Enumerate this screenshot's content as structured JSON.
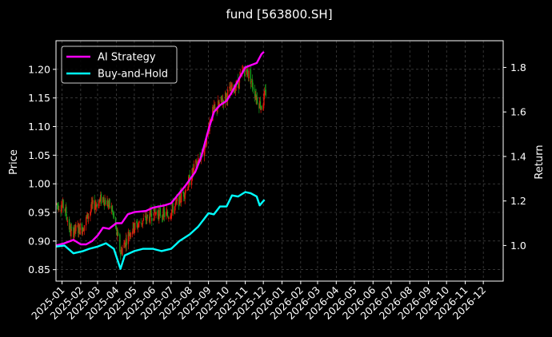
{
  "chart_data": {
    "type": "line",
    "title": "fund [563800.SH]",
    "ylabel": "Price",
    "y2label": "Return",
    "ylim": [
      0.83,
      1.25
    ],
    "y2lim": [
      0.84,
      1.92
    ],
    "yticks": [
      0.85,
      0.9,
      0.95,
      1.0,
      1.05,
      1.1,
      1.15,
      1.2
    ],
    "yticklabels": [
      "0.85",
      "0.90",
      "0.95",
      "1.00",
      "1.05",
      "1.10",
      "1.15",
      "1.20"
    ],
    "y2ticks": [
      1.0,
      1.2,
      1.4,
      1.6,
      1.8
    ],
    "y2ticklabels": [
      "1.0",
      "1.2",
      "1.4",
      "1.6",
      "1.8"
    ],
    "xlim": [
      "2024-12-22",
      "2027-01-03"
    ],
    "xticks": [
      "2025-01-01",
      "2025-02-01",
      "2025-03-01",
      "2025-04-01",
      "2025-05-01",
      "2025-06-01",
      "2025-07-01",
      "2025-08-01",
      "2025-09-01",
      "2025-10-01",
      "2025-11-01",
      "2025-12-01",
      "2026-01-01",
      "2026-02-01",
      "2026-03-01",
      "2026-04-01",
      "2026-05-01",
      "2026-06-01",
      "2026-07-01",
      "2026-08-01",
      "2026-09-01",
      "2026-10-01",
      "2026-11-01",
      "2026-12-01"
    ],
    "xticklabels": [
      "2025-01",
      "2025-02",
      "2025-03",
      "2025-04",
      "2025-05",
      "2025-06",
      "2025-07",
      "2025-08",
      "2025-09",
      "2025-10",
      "2025-11",
      "2025-12",
      "2026-01",
      "2026-02",
      "2026-03",
      "2026-04",
      "2026-05",
      "2026-06",
      "2026-07",
      "2026-08",
      "2026-09",
      "2026-10",
      "2026-11",
      "2026-12"
    ],
    "grid": true,
    "legend_position": "top-left",
    "price_trend": [
      {
        "date": "2024-12-22",
        "price": 0.965
      },
      {
        "date": "2025-01-05",
        "price": 0.96
      },
      {
        "date": "2025-01-15",
        "price": 0.915
      },
      {
        "date": "2025-02-05",
        "price": 0.925
      },
      {
        "date": "2025-02-20",
        "price": 0.96
      },
      {
        "date": "2025-03-10",
        "price": 0.975
      },
      {
        "date": "2025-03-25",
        "price": 0.955
      },
      {
        "date": "2025-04-08",
        "price": 0.88
      },
      {
        "date": "2025-04-25",
        "price": 0.92
      },
      {
        "date": "2025-05-15",
        "price": 0.935
      },
      {
        "date": "2025-06-05",
        "price": 0.95
      },
      {
        "date": "2025-06-25",
        "price": 0.945
      },
      {
        "date": "2025-07-10",
        "price": 0.965
      },
      {
        "date": "2025-07-25",
        "price": 0.99
      },
      {
        "date": "2025-08-10",
        "price": 1.03
      },
      {
        "date": "2025-08-25",
        "price": 1.06
      },
      {
        "date": "2025-09-05",
        "price": 1.12
      },
      {
        "date": "2025-09-20",
        "price": 1.14
      },
      {
        "date": "2025-10-05",
        "price": 1.16
      },
      {
        "date": "2025-10-20",
        "price": 1.175
      },
      {
        "date": "2025-10-30",
        "price": 1.2
      },
      {
        "date": "2025-11-08",
        "price": 1.19
      },
      {
        "date": "2025-11-20",
        "price": 1.15
      },
      {
        "date": "2025-11-28",
        "price": 1.135
      },
      {
        "date": "2025-12-05",
        "price": 1.16
      }
    ],
    "series": [
      {
        "name": "AI Strategy",
        "color": "#ff00ff",
        "points": [
          {
            "date": "2024-12-22",
            "value": 1.0
          },
          {
            "date": "2025-01-05",
            "value": 1.01
          },
          {
            "date": "2025-01-20",
            "value": 1.025
          },
          {
            "date": "2025-02-01",
            "value": 1.005
          },
          {
            "date": "2025-02-10",
            "value": 1.005
          },
          {
            "date": "2025-02-20",
            "value": 1.02
          },
          {
            "date": "2025-03-01",
            "value": 1.045
          },
          {
            "date": "2025-03-10",
            "value": 1.08
          },
          {
            "date": "2025-03-20",
            "value": 1.075
          },
          {
            "date": "2025-04-01",
            "value": 1.1
          },
          {
            "date": "2025-04-10",
            "value": 1.1
          },
          {
            "date": "2025-04-20",
            "value": 1.14
          },
          {
            "date": "2025-05-01",
            "value": 1.15
          },
          {
            "date": "2025-05-20",
            "value": 1.155
          },
          {
            "date": "2025-06-01",
            "value": 1.17
          },
          {
            "date": "2025-06-20",
            "value": 1.18
          },
          {
            "date": "2025-07-01",
            "value": 1.19
          },
          {
            "date": "2025-07-10",
            "value": 1.22
          },
          {
            "date": "2025-07-25",
            "value": 1.27
          },
          {
            "date": "2025-08-10",
            "value": 1.33
          },
          {
            "date": "2025-08-20",
            "value": 1.4
          },
          {
            "date": "2025-09-01",
            "value": 1.52
          },
          {
            "date": "2025-09-10",
            "value": 1.6
          },
          {
            "date": "2025-09-20",
            "value": 1.63
          },
          {
            "date": "2025-10-01",
            "value": 1.65
          },
          {
            "date": "2025-10-10",
            "value": 1.69
          },
          {
            "date": "2025-10-20",
            "value": 1.74
          },
          {
            "date": "2025-11-01",
            "value": 1.8
          },
          {
            "date": "2025-11-10",
            "value": 1.81
          },
          {
            "date": "2025-11-20",
            "value": 1.82
          },
          {
            "date": "2025-11-28",
            "value": 1.86
          },
          {
            "date": "2025-12-02",
            "value": 1.87
          }
        ]
      },
      {
        "name": "Buy-and-Hold",
        "color": "#00ffff",
        "points": [
          {
            "date": "2024-12-22",
            "value": 0.995
          },
          {
            "date": "2025-01-05",
            "value": 1.0
          },
          {
            "date": "2025-01-20",
            "value": 0.965
          },
          {
            "date": "2025-02-05",
            "value": 0.975
          },
          {
            "date": "2025-02-15",
            "value": 0.985
          },
          {
            "date": "2025-03-01",
            "value": 0.995
          },
          {
            "date": "2025-03-15",
            "value": 1.01
          },
          {
            "date": "2025-03-28",
            "value": 0.985
          },
          {
            "date": "2025-04-08",
            "value": 0.895
          },
          {
            "date": "2025-04-15",
            "value": 0.955
          },
          {
            "date": "2025-05-01",
            "value": 0.975
          },
          {
            "date": "2025-05-15",
            "value": 0.985
          },
          {
            "date": "2025-06-01",
            "value": 0.985
          },
          {
            "date": "2025-06-15",
            "value": 0.975
          },
          {
            "date": "2025-07-01",
            "value": 0.985
          },
          {
            "date": "2025-07-15",
            "value": 1.02
          },
          {
            "date": "2025-08-01",
            "value": 1.05
          },
          {
            "date": "2025-08-15",
            "value": 1.085
          },
          {
            "date": "2025-09-01",
            "value": 1.145
          },
          {
            "date": "2025-09-10",
            "value": 1.14
          },
          {
            "date": "2025-09-20",
            "value": 1.175
          },
          {
            "date": "2025-10-01",
            "value": 1.175
          },
          {
            "date": "2025-10-10",
            "value": 1.225
          },
          {
            "date": "2025-10-20",
            "value": 1.22
          },
          {
            "date": "2025-11-01",
            "value": 1.24
          },
          {
            "date": "2025-11-10",
            "value": 1.235
          },
          {
            "date": "2025-11-20",
            "value": 1.22
          },
          {
            "date": "2025-11-25",
            "value": 1.18
          },
          {
            "date": "2025-12-01",
            "value": 1.2
          },
          {
            "date": "2025-12-03",
            "value": 1.205
          }
        ]
      }
    ]
  }
}
